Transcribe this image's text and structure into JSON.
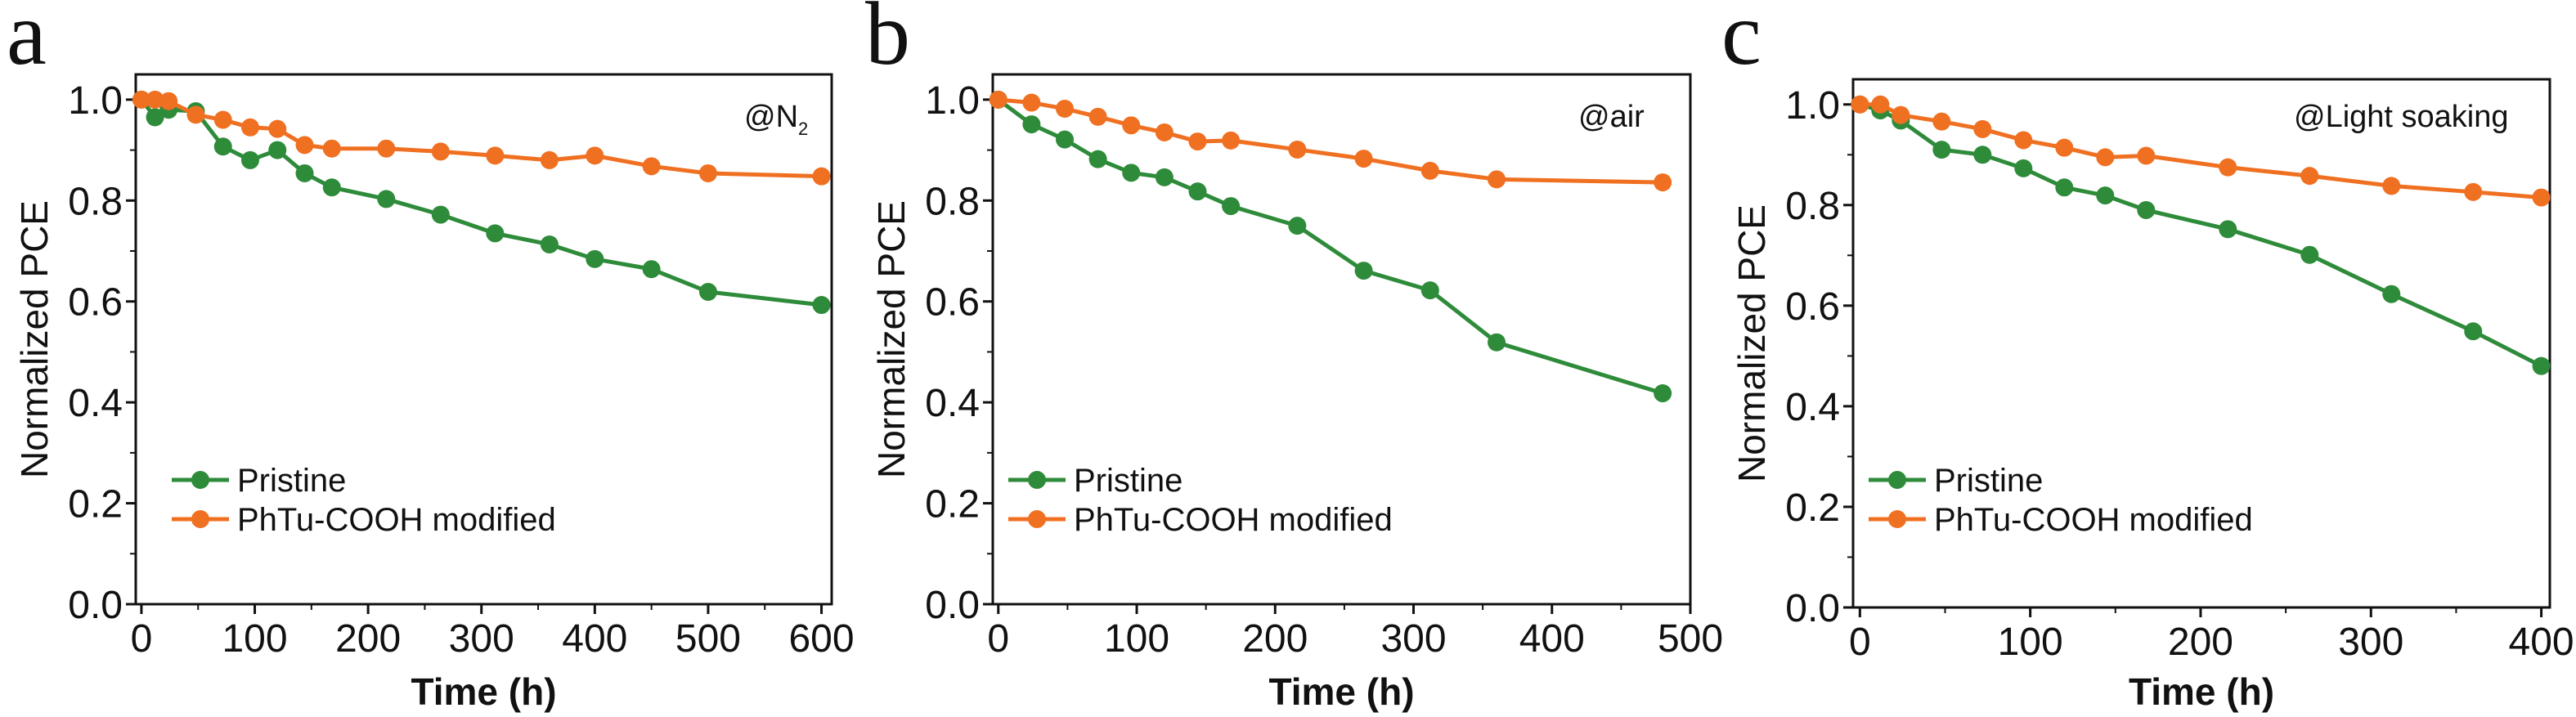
{
  "colors": {
    "pristine": "#2e8b3a",
    "modified": "#f07022",
    "axis": "#111111"
  },
  "chart_data": [
    {
      "type": "line",
      "panel_label": "a",
      "annotation": "@N",
      "annotation_sub": "2",
      "xlabel": "Time (h)",
      "ylabel": "Normalized PCE",
      "xlim": [
        -5,
        609
      ],
      "ylim": [
        0,
        1.05
      ],
      "xticks": [
        0,
        100,
        200,
        300,
        400,
        500,
        600
      ],
      "xtick_labels": [
        "0",
        "100",
        "200",
        "300",
        "400",
        "500",
        "600"
      ],
      "yticks": [
        0,
        0.2,
        0.4,
        0.6,
        0.8,
        1.0
      ],
      "ytick_labels": [
        "0.0",
        "0.2",
        "0.4",
        "0.6",
        "0.8",
        "1.0"
      ],
      "legend_position": "bottom-left",
      "series": [
        {
          "name": "Pristine",
          "color_key": "pristine",
          "x": [
            0,
            12,
            24,
            48,
            72,
            96,
            120,
            144,
            168,
            216,
            264,
            312,
            360,
            400,
            450,
            500,
            600
          ],
          "y": [
            1.0,
            0.965,
            0.98,
            0.977,
            0.907,
            0.88,
            0.9,
            0.854,
            0.826,
            0.803,
            0.772,
            0.735,
            0.713,
            0.684,
            0.664,
            0.619,
            0.593
          ]
        },
        {
          "name": "PhTu-COOH modified",
          "color_key": "modified",
          "x": [
            0,
            12,
            24,
            48,
            72,
            96,
            120,
            144,
            168,
            216,
            264,
            312,
            360,
            400,
            450,
            500,
            600
          ],
          "y": [
            1.0,
            1.0,
            0.997,
            0.97,
            0.96,
            0.945,
            0.942,
            0.91,
            0.903,
            0.903,
            0.897,
            0.889,
            0.88,
            0.889,
            0.868,
            0.854,
            0.848
          ]
        }
      ]
    },
    {
      "type": "line",
      "panel_label": "b",
      "annotation": "@air",
      "annotation_sub": "",
      "xlabel": "Time (h)",
      "ylabel": "Normalized PCE",
      "xlim": [
        -4,
        500
      ],
      "ylim": [
        0,
        1.05
      ],
      "xticks": [
        0,
        100,
        200,
        300,
        400,
        500
      ],
      "xtick_labels": [
        "0",
        "100",
        "200",
        "300",
        "400",
        "500"
      ],
      "yticks": [
        0,
        0.2,
        0.4,
        0.6,
        0.8,
        1.0
      ],
      "ytick_labels": [
        "0.0",
        "0.2",
        "0.4",
        "0.6",
        "0.8",
        "1.0"
      ],
      "legend_position": "bottom-left",
      "series": [
        {
          "name": "Pristine",
          "color_key": "pristine",
          "x": [
            0,
            24,
            48,
            72,
            96,
            120,
            144,
            168,
            216,
            264,
            312,
            360,
            480
          ],
          "y": [
            1.0,
            0.951,
            0.921,
            0.882,
            0.855,
            0.846,
            0.818,
            0.789,
            0.75,
            0.661,
            0.622,
            0.519,
            0.418
          ]
        },
        {
          "name": "PhTu-COOH modified",
          "color_key": "modified",
          "x": [
            0,
            24,
            48,
            72,
            96,
            120,
            144,
            168,
            216,
            264,
            312,
            360,
            480
          ],
          "y": [
            1.0,
            0.994,
            0.982,
            0.966,
            0.949,
            0.935,
            0.917,
            0.919,
            0.901,
            0.883,
            0.859,
            0.842,
            0.836
          ]
        }
      ]
    },
    {
      "type": "line",
      "panel_label": "c",
      "annotation": "@Light soaking",
      "annotation_sub": "",
      "xlabel": "Time (h)",
      "ylabel": "Normalized PCE",
      "xlim": [
        -4,
        405
      ],
      "ylim": [
        0,
        1.05
      ],
      "xticks": [
        0,
        100,
        200,
        300,
        400
      ],
      "xtick_labels": [
        "0",
        "100",
        "200",
        "300",
        "400"
      ],
      "yticks": [
        0,
        0.2,
        0.4,
        0.6,
        0.8,
        1.0
      ],
      "ytick_labels": [
        "0.0",
        "0.2",
        "0.4",
        "0.6",
        "0.8",
        "1.0"
      ],
      "legend_position": "bottom-left",
      "series": [
        {
          "name": "Pristine",
          "color_key": "pristine",
          "x": [
            0,
            12,
            24,
            48,
            72,
            96,
            120,
            144,
            168,
            216,
            264,
            312,
            360,
            400
          ],
          "y": [
            1.0,
            0.988,
            0.968,
            0.91,
            0.9,
            0.873,
            0.835,
            0.819,
            0.79,
            0.752,
            0.701,
            0.623,
            0.549,
            0.48
          ]
        },
        {
          "name": "PhTu-COOH modified",
          "color_key": "modified",
          "x": [
            0,
            12,
            24,
            48,
            72,
            96,
            120,
            144,
            168,
            216,
            264,
            312,
            360,
            400
          ],
          "y": [
            1.0,
            1.0,
            0.979,
            0.966,
            0.951,
            0.929,
            0.914,
            0.895,
            0.898,
            0.875,
            0.858,
            0.838,
            0.826,
            0.815
          ]
        }
      ]
    }
  ]
}
